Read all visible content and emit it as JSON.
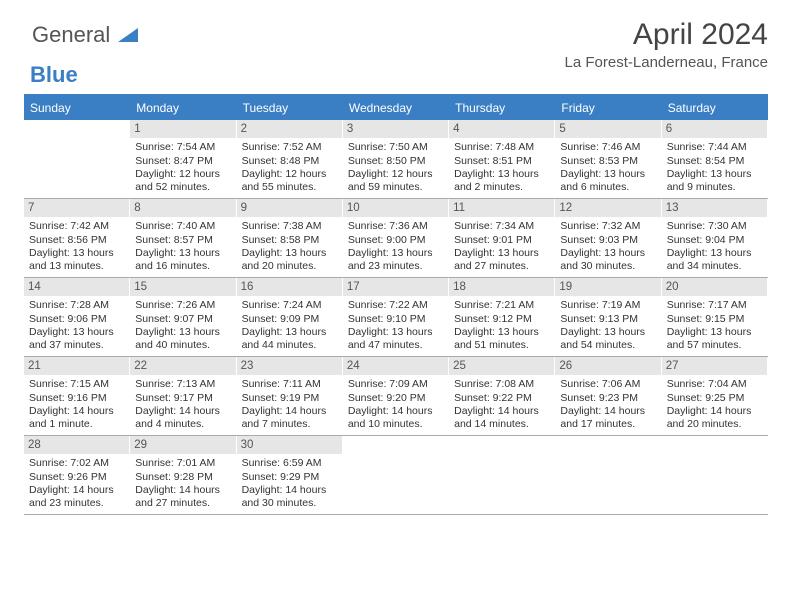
{
  "brand": {
    "word1": "General",
    "word2": "Blue"
  },
  "title": "April 2024",
  "subtitle": "La Forest-Landerneau, France",
  "colors": {
    "accent": "#3a7fc4",
    "header_bg": "#3a7fc4",
    "daynum_bg": "#e6e6e6",
    "text": "#333333",
    "title_text": "#444444"
  },
  "day_names": [
    "Sunday",
    "Monday",
    "Tuesday",
    "Wednesday",
    "Thursday",
    "Friday",
    "Saturday"
  ],
  "weeks": [
    [
      {
        "day": "",
        "sunrise": "",
        "sunset": "",
        "daylight1": "",
        "daylight2": "",
        "empty": true
      },
      {
        "day": "1",
        "sunrise": "Sunrise: 7:54 AM",
        "sunset": "Sunset: 8:47 PM",
        "daylight1": "Daylight: 12 hours",
        "daylight2": "and 52 minutes."
      },
      {
        "day": "2",
        "sunrise": "Sunrise: 7:52 AM",
        "sunset": "Sunset: 8:48 PM",
        "daylight1": "Daylight: 12 hours",
        "daylight2": "and 55 minutes."
      },
      {
        "day": "3",
        "sunrise": "Sunrise: 7:50 AM",
        "sunset": "Sunset: 8:50 PM",
        "daylight1": "Daylight: 12 hours",
        "daylight2": "and 59 minutes."
      },
      {
        "day": "4",
        "sunrise": "Sunrise: 7:48 AM",
        "sunset": "Sunset: 8:51 PM",
        "daylight1": "Daylight: 13 hours",
        "daylight2": "and 2 minutes."
      },
      {
        "day": "5",
        "sunrise": "Sunrise: 7:46 AM",
        "sunset": "Sunset: 8:53 PM",
        "daylight1": "Daylight: 13 hours",
        "daylight2": "and 6 minutes."
      },
      {
        "day": "6",
        "sunrise": "Sunrise: 7:44 AM",
        "sunset": "Sunset: 8:54 PM",
        "daylight1": "Daylight: 13 hours",
        "daylight2": "and 9 minutes."
      }
    ],
    [
      {
        "day": "7",
        "sunrise": "Sunrise: 7:42 AM",
        "sunset": "Sunset: 8:56 PM",
        "daylight1": "Daylight: 13 hours",
        "daylight2": "and 13 minutes."
      },
      {
        "day": "8",
        "sunrise": "Sunrise: 7:40 AM",
        "sunset": "Sunset: 8:57 PM",
        "daylight1": "Daylight: 13 hours",
        "daylight2": "and 16 minutes."
      },
      {
        "day": "9",
        "sunrise": "Sunrise: 7:38 AM",
        "sunset": "Sunset: 8:58 PM",
        "daylight1": "Daylight: 13 hours",
        "daylight2": "and 20 minutes."
      },
      {
        "day": "10",
        "sunrise": "Sunrise: 7:36 AM",
        "sunset": "Sunset: 9:00 PM",
        "daylight1": "Daylight: 13 hours",
        "daylight2": "and 23 minutes."
      },
      {
        "day": "11",
        "sunrise": "Sunrise: 7:34 AM",
        "sunset": "Sunset: 9:01 PM",
        "daylight1": "Daylight: 13 hours",
        "daylight2": "and 27 minutes."
      },
      {
        "day": "12",
        "sunrise": "Sunrise: 7:32 AM",
        "sunset": "Sunset: 9:03 PM",
        "daylight1": "Daylight: 13 hours",
        "daylight2": "and 30 minutes."
      },
      {
        "day": "13",
        "sunrise": "Sunrise: 7:30 AM",
        "sunset": "Sunset: 9:04 PM",
        "daylight1": "Daylight: 13 hours",
        "daylight2": "and 34 minutes."
      }
    ],
    [
      {
        "day": "14",
        "sunrise": "Sunrise: 7:28 AM",
        "sunset": "Sunset: 9:06 PM",
        "daylight1": "Daylight: 13 hours",
        "daylight2": "and 37 minutes."
      },
      {
        "day": "15",
        "sunrise": "Sunrise: 7:26 AM",
        "sunset": "Sunset: 9:07 PM",
        "daylight1": "Daylight: 13 hours",
        "daylight2": "and 40 minutes."
      },
      {
        "day": "16",
        "sunrise": "Sunrise: 7:24 AM",
        "sunset": "Sunset: 9:09 PM",
        "daylight1": "Daylight: 13 hours",
        "daylight2": "and 44 minutes."
      },
      {
        "day": "17",
        "sunrise": "Sunrise: 7:22 AM",
        "sunset": "Sunset: 9:10 PM",
        "daylight1": "Daylight: 13 hours",
        "daylight2": "and 47 minutes."
      },
      {
        "day": "18",
        "sunrise": "Sunrise: 7:21 AM",
        "sunset": "Sunset: 9:12 PM",
        "daylight1": "Daylight: 13 hours",
        "daylight2": "and 51 minutes."
      },
      {
        "day": "19",
        "sunrise": "Sunrise: 7:19 AM",
        "sunset": "Sunset: 9:13 PM",
        "daylight1": "Daylight: 13 hours",
        "daylight2": "and 54 minutes."
      },
      {
        "day": "20",
        "sunrise": "Sunrise: 7:17 AM",
        "sunset": "Sunset: 9:15 PM",
        "daylight1": "Daylight: 13 hours",
        "daylight2": "and 57 minutes."
      }
    ],
    [
      {
        "day": "21",
        "sunrise": "Sunrise: 7:15 AM",
        "sunset": "Sunset: 9:16 PM",
        "daylight1": "Daylight: 14 hours",
        "daylight2": "and 1 minute."
      },
      {
        "day": "22",
        "sunrise": "Sunrise: 7:13 AM",
        "sunset": "Sunset: 9:17 PM",
        "daylight1": "Daylight: 14 hours",
        "daylight2": "and 4 minutes."
      },
      {
        "day": "23",
        "sunrise": "Sunrise: 7:11 AM",
        "sunset": "Sunset: 9:19 PM",
        "daylight1": "Daylight: 14 hours",
        "daylight2": "and 7 minutes."
      },
      {
        "day": "24",
        "sunrise": "Sunrise: 7:09 AM",
        "sunset": "Sunset: 9:20 PM",
        "daylight1": "Daylight: 14 hours",
        "daylight2": "and 10 minutes."
      },
      {
        "day": "25",
        "sunrise": "Sunrise: 7:08 AM",
        "sunset": "Sunset: 9:22 PM",
        "daylight1": "Daylight: 14 hours",
        "daylight2": "and 14 minutes."
      },
      {
        "day": "26",
        "sunrise": "Sunrise: 7:06 AM",
        "sunset": "Sunset: 9:23 PM",
        "daylight1": "Daylight: 14 hours",
        "daylight2": "and 17 minutes."
      },
      {
        "day": "27",
        "sunrise": "Sunrise: 7:04 AM",
        "sunset": "Sunset: 9:25 PM",
        "daylight1": "Daylight: 14 hours",
        "daylight2": "and 20 minutes."
      }
    ],
    [
      {
        "day": "28",
        "sunrise": "Sunrise: 7:02 AM",
        "sunset": "Sunset: 9:26 PM",
        "daylight1": "Daylight: 14 hours",
        "daylight2": "and 23 minutes."
      },
      {
        "day": "29",
        "sunrise": "Sunrise: 7:01 AM",
        "sunset": "Sunset: 9:28 PM",
        "daylight1": "Daylight: 14 hours",
        "daylight2": "and 27 minutes."
      },
      {
        "day": "30",
        "sunrise": "Sunrise: 6:59 AM",
        "sunset": "Sunset: 9:29 PM",
        "daylight1": "Daylight: 14 hours",
        "daylight2": "and 30 minutes."
      },
      {
        "day": "",
        "sunrise": "",
        "sunset": "",
        "daylight1": "",
        "daylight2": "",
        "empty": true
      },
      {
        "day": "",
        "sunrise": "",
        "sunset": "",
        "daylight1": "",
        "daylight2": "",
        "empty": true
      },
      {
        "day": "",
        "sunrise": "",
        "sunset": "",
        "daylight1": "",
        "daylight2": "",
        "empty": true
      },
      {
        "day": "",
        "sunrise": "",
        "sunset": "",
        "daylight1": "",
        "daylight2": "",
        "empty": true
      }
    ]
  ]
}
